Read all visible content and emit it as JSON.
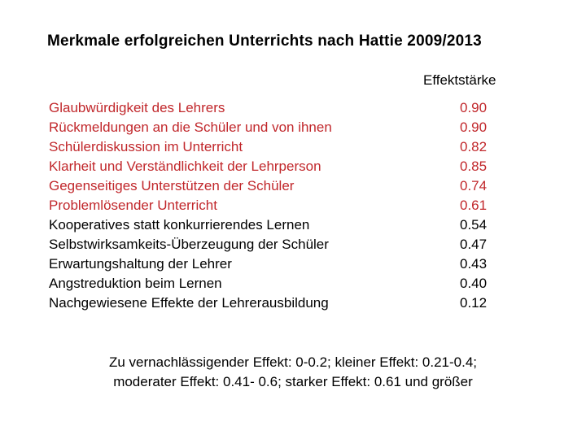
{
  "slide": {
    "title": "Merkmale erfolgreichen Unterrichts nach Hattie 2009/2013",
    "column_header": "Effektstärke",
    "colors": {
      "strong_effect_red": "#C1272B",
      "default_text": "#000000",
      "background": "#FFFFFF"
    },
    "table": {
      "rows": [
        {
          "label": "Glaubwürdigkeit des Lehrers",
          "value": "0.90",
          "color": "#C1272B"
        },
        {
          "label": "Rückmeldungen an die Schüler und von ihnen",
          "value": "0.90",
          "color": "#C1272B"
        },
        {
          "label": "Schülerdiskussion im Unterricht",
          "value": "0.82",
          "color": "#C1272B"
        },
        {
          "label": "Klarheit und Verständlichkeit der Lehrperson",
          "value": "0.85",
          "color": "#C1272B"
        },
        {
          "label": "Gegenseitiges Unterstützen der Schüler",
          "value": "0.74",
          "color": "#C1272B"
        },
        {
          "label": "Problemlösender Unterricht",
          "value": "0.61",
          "color": "#C1272B"
        },
        {
          "label": "Kooperatives statt konkurrierendes Lernen",
          "value": "0.54",
          "color": "#000000"
        },
        {
          "label": "Selbstwirksamkeits-Überzeugung der Schüler",
          "value": "0.47",
          "color": "#000000"
        },
        {
          "label": "Erwartungshaltung der Lehrer",
          "value": "0.43",
          "color": "#000000"
        },
        {
          "label": "Angstreduktion beim Lernen",
          "value": "0.40",
          "color": "#000000"
        },
        {
          "label": "Nachgewiesene Effekte der Lehrerausbildung",
          "value": "0.12",
          "color": "#000000"
        }
      ]
    },
    "footnote": {
      "line1": "Zu vernachlässigender Effekt: 0-0.2; kleiner Effekt: 0.21-0.4;",
      "line2": "moderater Effekt: 0.41- 0.6; starker Effekt: 0.61 und größer"
    }
  }
}
